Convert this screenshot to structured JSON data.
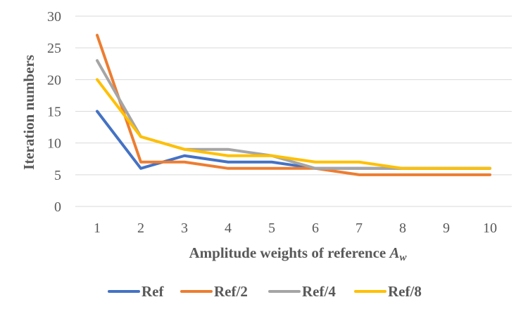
{
  "chart_data": {
    "type": "line",
    "x": [
      1,
      2,
      3,
      4,
      5,
      6,
      7,
      8,
      9,
      10
    ],
    "x_ticks": [
      "1",
      "2",
      "3",
      "4",
      "5",
      "6",
      "7",
      "8",
      "9",
      "10"
    ],
    "y_ticks": [
      "0",
      "5",
      "10",
      "15",
      "20",
      "25",
      "30"
    ],
    "ylim": [
      0,
      30
    ],
    "ylabel": "Iteration numbers",
    "xlabel": {
      "text": "Amplitude weights of reference ",
      "symbol": "A",
      "subscript": "w"
    },
    "grid": true,
    "legend_position": "bottom",
    "series": [
      {
        "name": "Ref",
        "color": "#4472C4",
        "values": [
          15,
          6,
          8,
          7,
          7,
          6,
          6,
          6,
          6,
          6
        ]
      },
      {
        "name": "Ref/2",
        "color": "#ED7D31",
        "values": [
          27,
          7,
          7,
          6,
          6,
          6,
          5,
          5,
          5,
          5
        ]
      },
      {
        "name": "Ref/4",
        "color": "#A5A5A5",
        "values": [
          23,
          11,
          9,
          9,
          8,
          6,
          6,
          6,
          6,
          6
        ]
      },
      {
        "name": "Ref/8",
        "color": "#FFC000",
        "values": [
          20,
          11,
          9,
          8,
          8,
          7,
          7,
          6,
          6,
          6
        ]
      }
    ]
  }
}
